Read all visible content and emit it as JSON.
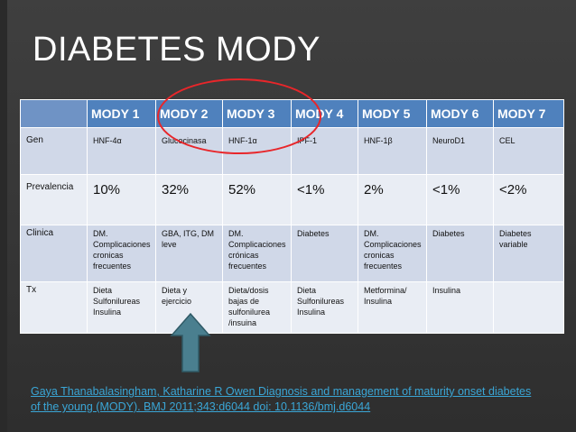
{
  "title": "DIABETES MODY",
  "table": {
    "headers": [
      "",
      "MODY 1",
      "MODY 2",
      "MODY 3",
      "MODY 4",
      "MODY 5",
      "MODY 6",
      "MODY 7"
    ],
    "rows": [
      {
        "label": "Gen",
        "cells": [
          "HNF-4α",
          "Glucocinasa",
          "HNF-1α",
          "IPF-1",
          "HNF-1β",
          "NeuroD1",
          "CEL"
        ]
      },
      {
        "label": "Prevalencia",
        "cells": [
          "10%",
          "32%",
          "52%",
          "<1%",
          "2%",
          "<1%",
          "<2%"
        ]
      },
      {
        "label": "Clinica",
        "cells": [
          "DM. Complicaciones cronicas frecuentes",
          "GBA, ITG, DM leve",
          "DM. Complicaciones crónicas frecuentes",
          "Diabetes",
          "DM. Complicaciones cronicas frecuentes",
          "Diabetes",
          "Diabetes variable"
        ]
      },
      {
        "label": "Tx",
        "cells": [
          "Dieta Sulfonilureas Insulina",
          "Dieta y ejercicio",
          "Dieta/dosis bajas de sulfonilurea /insuina",
          "Dieta Sulfonilureas Insulina",
          "Metformina/ Insulina",
          "Insulina",
          ""
        ]
      }
    ]
  },
  "citation": "Gaya Thanabalasingham, Katharine R Owen Diagnosis and management of maturity onset diabetes of the young (MODY). BMJ 2011;343:d6044 doi: 10.1136/bmj.d6044",
  "colors": {
    "header": "#4f81bd",
    "row_odd": "#d0d8e8",
    "row_even": "#e9edf4",
    "circle": "#e8262a",
    "arrow": "#4a7f8f",
    "citation": "#3aa6d6"
  },
  "icons": {
    "arrow": "up-arrow-icon",
    "circle": "highlight-circle"
  }
}
